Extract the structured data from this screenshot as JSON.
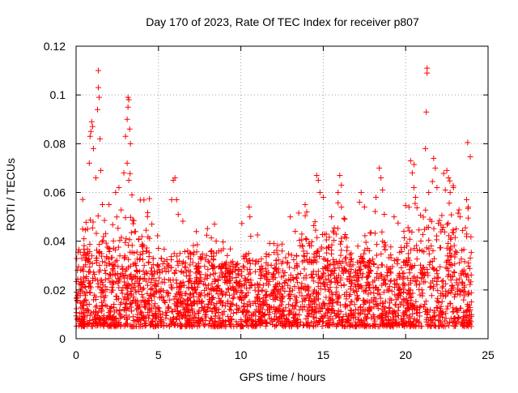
{
  "chart_data": {
    "type": "scatter",
    "title": "Day 170 of 2023, Rate Of TEC Index for receiver p807",
    "xlabel": "GPS time / hours",
    "ylabel": "ROTI / TECUs",
    "xlim": [
      0,
      25
    ],
    "ylim": [
      0,
      0.12
    ],
    "x_ticks": [
      0,
      5,
      10,
      15,
      20,
      25
    ],
    "x_tick_labels": [
      "0",
      "5",
      "10",
      "15",
      "20",
      "25"
    ],
    "y_ticks": [
      0,
      0.02,
      0.04,
      0.06,
      0.08,
      0.1,
      0.12
    ],
    "y_tick_labels": [
      "0",
      "0.02",
      "0.04",
      "0.06",
      "0.08",
      "0.1",
      "0.12"
    ],
    "grid": true,
    "marker": "plus",
    "color": "#ff0000",
    "x_range_of_data": [
      0,
      24
    ],
    "approx_point_count": 3000,
    "baseline_band": [
      0.005,
      0.03
    ],
    "spike_points": [
      {
        "x": 0.4,
        "y": 0.045
      },
      {
        "x": 0.7,
        "y": 0.035
      },
      {
        "x": 0.8,
        "y": 0.072
      },
      {
        "x": 0.85,
        "y": 0.083
      },
      {
        "x": 0.9,
        "y": 0.085
      },
      {
        "x": 0.95,
        "y": 0.089
      },
      {
        "x": 1.0,
        "y": 0.087
      },
      {
        "x": 1.05,
        "y": 0.078
      },
      {
        "x": 1.2,
        "y": 0.066
      },
      {
        "x": 1.3,
        "y": 0.094
      },
      {
        "x": 1.35,
        "y": 0.103
      },
      {
        "x": 1.35,
        "y": 0.11
      },
      {
        "x": 1.4,
        "y": 0.099
      },
      {
        "x": 1.45,
        "y": 0.082
      },
      {
        "x": 1.5,
        "y": 0.069
      },
      {
        "x": 1.6,
        "y": 0.055
      },
      {
        "x": 2.0,
        "y": 0.055
      },
      {
        "x": 2.4,
        "y": 0.06
      },
      {
        "x": 2.6,
        "y": 0.062
      },
      {
        "x": 2.9,
        "y": 0.068
      },
      {
        "x": 3.0,
        "y": 0.083
      },
      {
        "x": 3.1,
        "y": 0.09
      },
      {
        "x": 3.15,
        "y": 0.095
      },
      {
        "x": 3.15,
        "y": 0.099
      },
      {
        "x": 3.2,
        "y": 0.098
      },
      {
        "x": 3.25,
        "y": 0.086
      },
      {
        "x": 3.3,
        "y": 0.08
      },
      {
        "x": 3.1,
        "y": 0.072
      },
      {
        "x": 3.2,
        "y": 0.065
      },
      {
        "x": 4.0,
        "y": 0.038
      },
      {
        "x": 4.6,
        "y": 0.047
      },
      {
        "x": 5.8,
        "y": 0.057
      },
      {
        "x": 5.9,
        "y": 0.065
      },
      {
        "x": 6.0,
        "y": 0.066
      },
      {
        "x": 6.1,
        "y": 0.057
      },
      {
        "x": 6.2,
        "y": 0.051
      },
      {
        "x": 8.4,
        "y": 0.047
      },
      {
        "x": 8.5,
        "y": 0.04
      },
      {
        "x": 10.5,
        "y": 0.054
      },
      {
        "x": 10.55,
        "y": 0.05
      },
      {
        "x": 10.6,
        "y": 0.042
      },
      {
        "x": 12.0,
        "y": 0.039
      },
      {
        "x": 12.5,
        "y": 0.036
      },
      {
        "x": 13.0,
        "y": 0.05
      },
      {
        "x": 13.3,
        "y": 0.044
      },
      {
        "x": 13.9,
        "y": 0.055
      },
      {
        "x": 14.0,
        "y": 0.052
      },
      {
        "x": 14.5,
        "y": 0.048
      },
      {
        "x": 14.6,
        "y": 0.067
      },
      {
        "x": 14.7,
        "y": 0.065
      },
      {
        "x": 14.8,
        "y": 0.06
      },
      {
        "x": 15.0,
        "y": 0.058
      },
      {
        "x": 15.5,
        "y": 0.05
      },
      {
        "x": 15.9,
        "y": 0.06
      },
      {
        "x": 16.0,
        "y": 0.067
      },
      {
        "x": 16.1,
        "y": 0.063
      },
      {
        "x": 16.3,
        "y": 0.049
      },
      {
        "x": 17.2,
        "y": 0.056
      },
      {
        "x": 17.3,
        "y": 0.06
      },
      {
        "x": 17.5,
        "y": 0.054
      },
      {
        "x": 18.2,
        "y": 0.058
      },
      {
        "x": 18.4,
        "y": 0.07
      },
      {
        "x": 18.5,
        "y": 0.066
      },
      {
        "x": 18.6,
        "y": 0.061
      },
      {
        "x": 19.3,
        "y": 0.05
      },
      {
        "x": 20.2,
        "y": 0.054
      },
      {
        "x": 20.3,
        "y": 0.073
      },
      {
        "x": 20.4,
        "y": 0.068
      },
      {
        "x": 20.5,
        "y": 0.062
      },
      {
        "x": 20.6,
        "y": 0.058
      },
      {
        "x": 21.2,
        "y": 0.078
      },
      {
        "x": 21.25,
        "y": 0.093
      },
      {
        "x": 21.3,
        "y": 0.109
      },
      {
        "x": 21.3,
        "y": 0.111
      },
      {
        "x": 21.4,
        "y": 0.06
      },
      {
        "x": 21.7,
        "y": 0.074
      },
      {
        "x": 21.8,
        "y": 0.07
      },
      {
        "x": 21.9,
        "y": 0.062
      },
      {
        "x": 22.5,
        "y": 0.069
      },
      {
        "x": 22.6,
        "y": 0.066
      },
      {
        "x": 22.7,
        "y": 0.06
      },
      {
        "x": 22.9,
        "y": 0.062
      },
      {
        "x": 23.3,
        "y": 0.05
      },
      {
        "x": 23.7,
        "y": 0.057
      },
      {
        "x": 23.8,
        "y": 0.054
      }
    ]
  }
}
